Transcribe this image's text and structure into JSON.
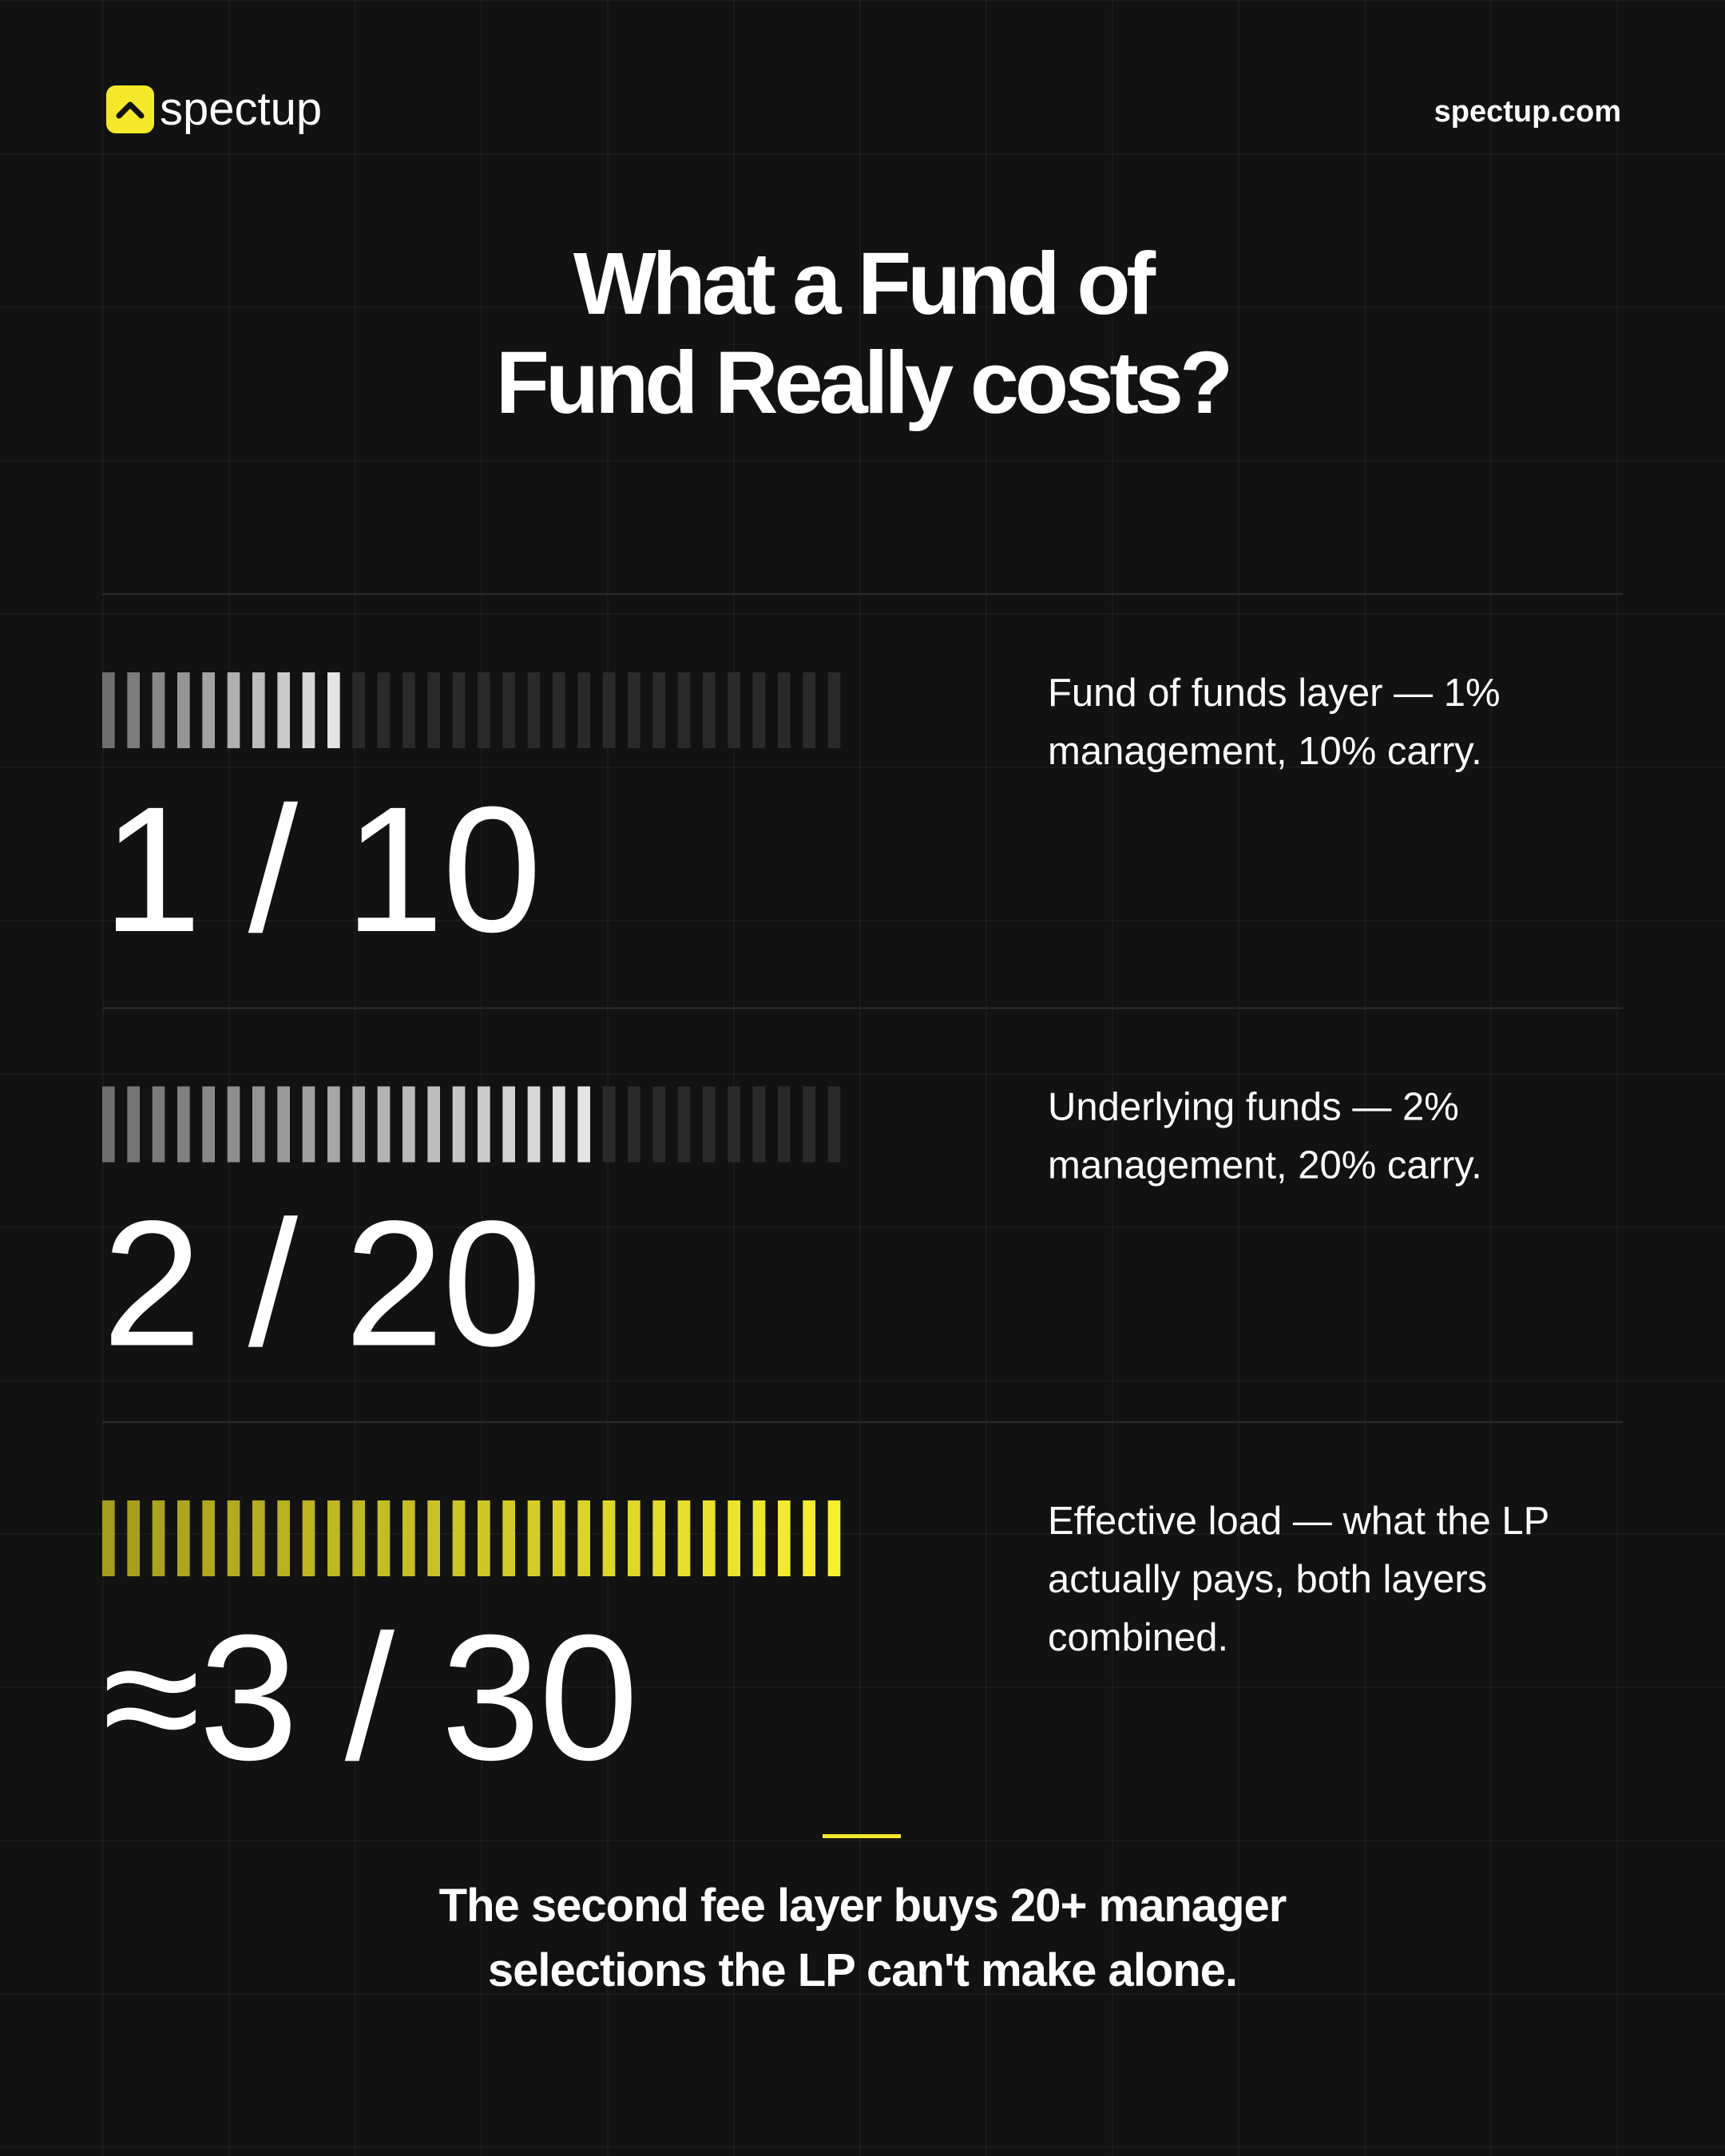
{
  "header": {
    "brand": "spectup",
    "site": "spectup.com"
  },
  "title": [
    "What a Fund of",
    "Fund Really costs?"
  ],
  "rows": [
    {
      "figure": "1 / 10",
      "segments": 30,
      "filled": 10,
      "colors": [
        "#6f6f6f",
        "#e4e4e4"
      ],
      "description": [
        "Fund of funds layer — 1%",
        "management, 10% carry."
      ]
    },
    {
      "figure": "2 / 20",
      "segments": 30,
      "filled": 20,
      "colors": [
        "#6f6f6f",
        "#e4e4e4"
      ],
      "description": [
        "Underlying funds — 2%",
        "management, 20% carry."
      ]
    },
    {
      "figure": "≈3 / 30",
      "segments": 30,
      "filled": 30,
      "colors": [
        "#a59d1c",
        "#f7ef2e"
      ],
      "description": [
        "Effective load — what the LP",
        "actually pays, both layers",
        "combined."
      ]
    }
  ],
  "footer": [
    "The second fee layer buys 20+ manager",
    "selections the LP can't make alone."
  ]
}
